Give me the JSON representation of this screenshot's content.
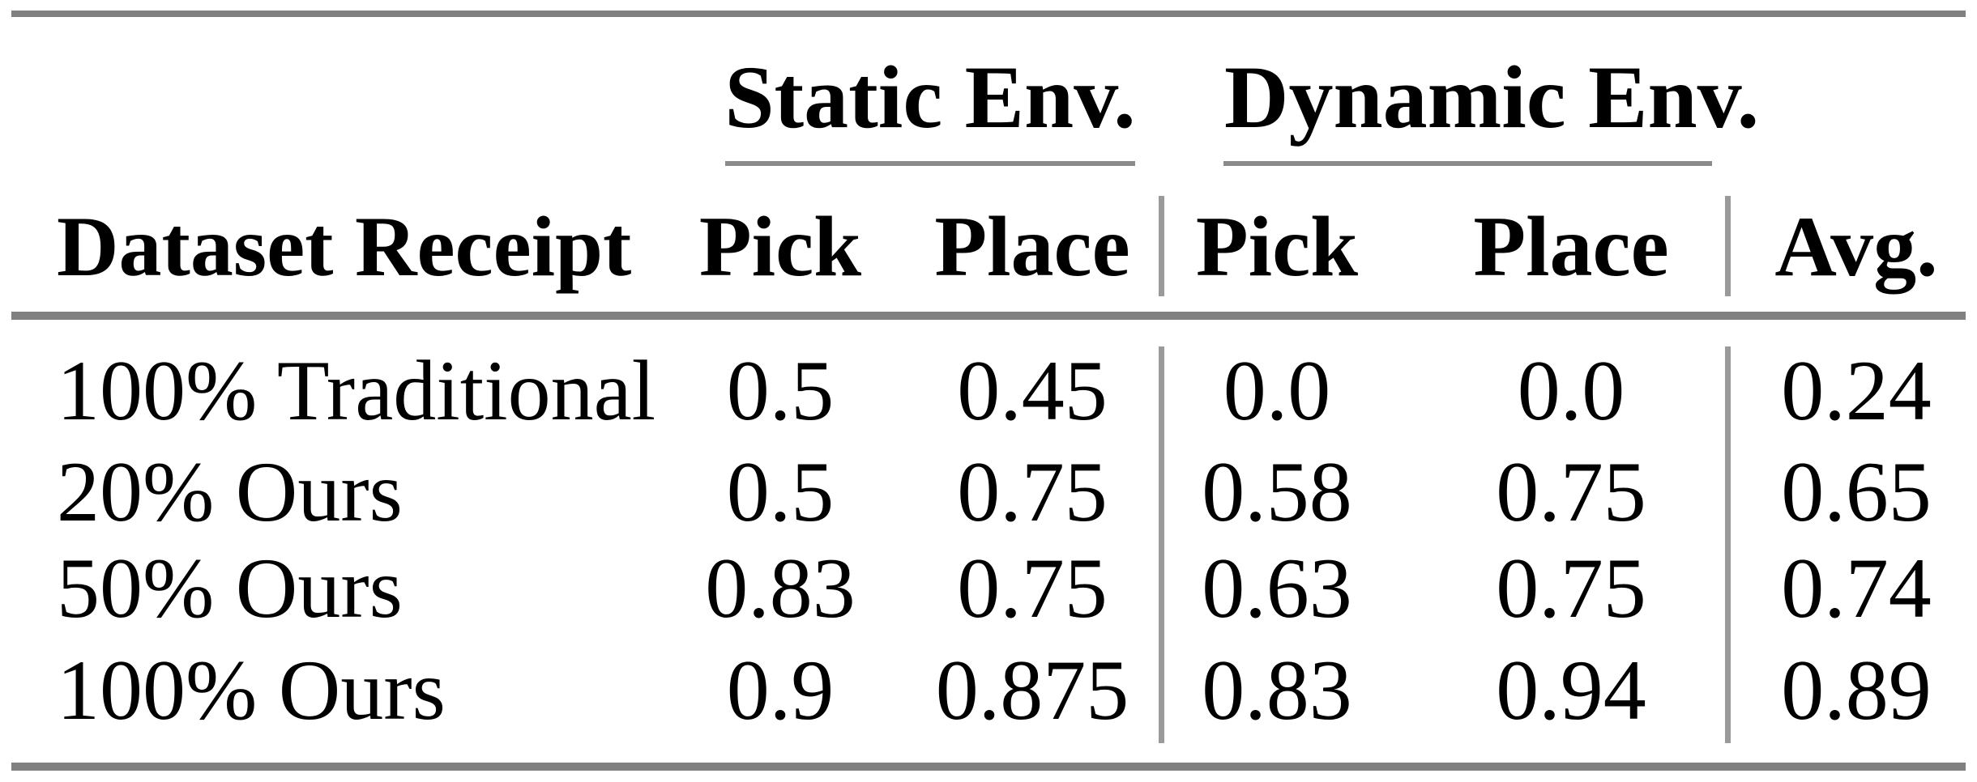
{
  "colors": {
    "background": "#ffffff",
    "text": "#000000",
    "heavy_rule": "#808080",
    "cmidrule": "#8a8a8a",
    "vertical_rule": "#9a9a9a"
  },
  "table": {
    "groups": [
      {
        "label": "Static Env.",
        "columns": [
          "Pick",
          "Place"
        ]
      },
      {
        "label": "Dynamic Env.",
        "columns": [
          "Pick",
          "Place"
        ]
      }
    ],
    "row_header": "Dataset Receipt",
    "avg_header": "Avg.",
    "rows": [
      {
        "label": "100% Traditional",
        "static_pick": "0.5",
        "static_place": "0.45",
        "dynamic_pick": "0.0",
        "dynamic_place": "0.0",
        "avg": "0.24"
      },
      {
        "label": "20% Ours",
        "static_pick": "0.5",
        "static_place": "0.75",
        "dynamic_pick": "0.58",
        "dynamic_place": "0.75",
        "avg": "0.65"
      },
      {
        "label": "50% Ours",
        "static_pick": "0.83",
        "static_place": "0.75",
        "dynamic_pick": "0.63",
        "dynamic_place": "0.75",
        "avg": "0.74"
      },
      {
        "label": "100% Ours",
        "static_pick": "0.9",
        "static_place": "0.875",
        "dynamic_pick": "0.83",
        "dynamic_place": "0.94",
        "avg": "0.89"
      }
    ]
  },
  "chart_data": {
    "type": "table",
    "title": "",
    "column_groups": [
      "",
      "Static Env.",
      "Static Env.",
      "Dynamic Env.",
      "Dynamic Env.",
      ""
    ],
    "columns": [
      "Dataset Receipt",
      "Pick",
      "Place",
      "Pick",
      "Place",
      "Avg."
    ],
    "rows": [
      [
        "100% Traditional",
        0.5,
        0.45,
        0.0,
        0.0,
        0.24
      ],
      [
        "20% Ours",
        0.5,
        0.75,
        0.58,
        0.75,
        0.65
      ],
      [
        "50% Ours",
        0.83,
        0.75,
        0.63,
        0.75,
        0.74
      ],
      [
        "100% Ours",
        0.9,
        0.875,
        0.83,
        0.94,
        0.89
      ]
    ]
  }
}
